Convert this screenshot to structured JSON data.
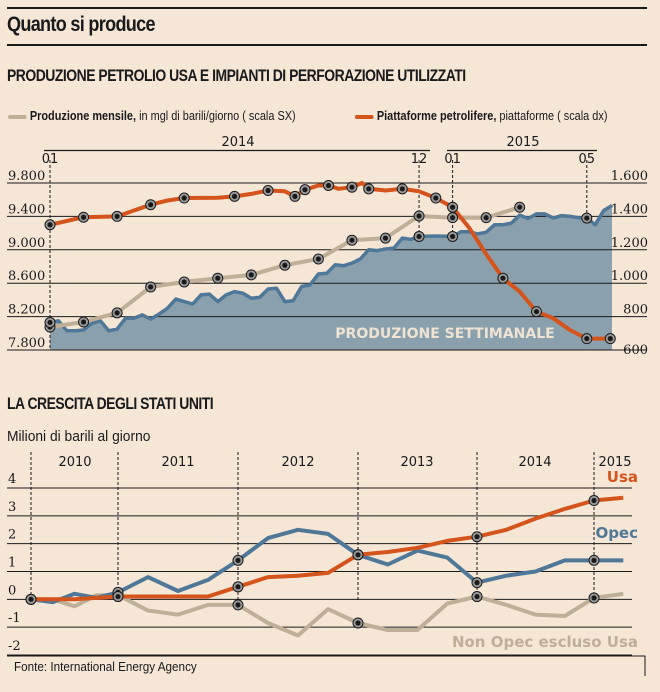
{
  "title": "Quanto si produce",
  "colors": {
    "background": "#f5e6d6",
    "rigs": "#d4541c",
    "monthly": "#bfae98",
    "weekly_line": "#4f7797",
    "weekly_fill": "#8aa0ad",
    "usa": "#d4541c",
    "opec": "#4f7797",
    "non_opec": "#bfae98"
  },
  "chart_data": [
    {
      "type": "line",
      "title": "PRODUZIONE PETROLIO USA E IMPIANTI DI PERFORAZIONE UTILIZZATI",
      "legend": [
        {
          "bold": "Produzione mensile,",
          "rest": " in mgl di barili/giorno ( scala SX)",
          "series": "monthly"
        },
        {
          "bold": "Piattaforme petrolifere,",
          "rest": " piattaforme ( scala dx)",
          "series": "rigs"
        }
      ],
      "year_labels": [
        "2014",
        "2015"
      ],
      "month_ticks": [
        {
          "label": "01",
          "month": 0
        },
        {
          "label": "12",
          "month": 11
        },
        {
          "label": "01",
          "month": 12
        },
        {
          "label": "05",
          "month": 16
        }
      ],
      "left_axis": {
        "ticks": [
          "9.800",
          "9.400",
          "9.000",
          "8.600",
          "8.200",
          "7.800"
        ],
        "range": [
          7800,
          9800
        ]
      },
      "right_axis": {
        "ticks": [
          "1.600",
          "1.400",
          "1.200",
          "1.000",
          "800",
          "600"
        ],
        "range": [
          600,
          1600
        ]
      },
      "area_label": "PRODUZIONE SETTIMANALE",
      "x_unit": "months since Jan 2014",
      "series": [
        {
          "name": "Piattaforme petrolifere",
          "key": "rigs",
          "axis": "right",
          "x": [
            0,
            1,
            2,
            3,
            3.5,
            4,
            5,
            5.5,
            6,
            6.5,
            7,
            7.3,
            7.6,
            8,
            8.3,
            8.6,
            9,
            9.3,
            9.5,
            10,
            10.5,
            11,
            11.5,
            12,
            12.5,
            13,
            13.5,
            14,
            14.5,
            15,
            15.5,
            16,
            16.7
          ],
          "values": [
            1350,
            1395,
            1400,
            1470,
            1495,
            1510,
            1512,
            1520,
            1535,
            1555,
            1550,
            1520,
            1560,
            1585,
            1585,
            1565,
            1575,
            1600,
            1565,
            1555,
            1565,
            1550,
            1510,
            1455,
            1330,
            1175,
            1030,
            950,
            830,
            790,
            720,
            668,
            668
          ],
          "markers": [
            0,
            1,
            2,
            3,
            5,
            7,
            9,
            11,
            12,
            14,
            16,
            18,
            20,
            22,
            23,
            26,
            28,
            31,
            32
          ]
        },
        {
          "name": "Produzione mensile",
          "key": "monthly",
          "axis": "left",
          "x": [
            0,
            1,
            2,
            3,
            4,
            5,
            6,
            7,
            8,
            9,
            10,
            11,
            12,
            13,
            14
          ],
          "values": [
            8075,
            8135,
            8245,
            8555,
            8615,
            8660,
            8700,
            8815,
            8890,
            9115,
            9140,
            9405,
            9385,
            9385,
            9510
          ]
        },
        {
          "name": "Produzione settimanale",
          "key": "weekly",
          "axis": "left",
          "x": [
            0,
            0.25,
            0.5,
            0.75,
            1,
            1.25,
            1.5,
            1.75,
            2,
            2.25,
            2.5,
            2.75,
            3,
            3.25,
            3.5,
            3.75,
            4,
            4.25,
            4.5,
            4.75,
            5,
            5.25,
            5.5,
            5.75,
            6,
            6.25,
            6.5,
            6.75,
            7,
            7.25,
            7.5,
            7.75,
            8,
            8.25,
            8.5,
            8.75,
            9,
            9.25,
            9.5,
            9.75,
            10,
            10.25,
            10.5,
            10.75,
            11,
            11.5,
            12,
            12.25,
            12.5,
            12.75,
            13,
            13.25,
            13.5,
            13.75,
            14,
            14.25,
            14.5,
            14.75,
            15,
            15.25,
            15.5,
            15.75,
            16,
            16.25,
            16.5,
            16.75
          ],
          "values": [
            8130,
            8150,
            8030,
            8030,
            8040,
            8120,
            8150,
            8030,
            8050,
            8180,
            8180,
            8220,
            8170,
            8230,
            8300,
            8410,
            8380,
            8350,
            8460,
            8470,
            8380,
            8460,
            8500,
            8480,
            8420,
            8430,
            8530,
            8540,
            8380,
            8390,
            8560,
            8580,
            8710,
            8720,
            8820,
            8810,
            8840,
            8890,
            9000,
            8990,
            9010,
            9020,
            9140,
            9125,
            9160,
            9165,
            9160,
            9215,
            9215,
            9190,
            9210,
            9300,
            9300,
            9320,
            9415,
            9375,
            9430,
            9430,
            9380,
            9410,
            9400,
            9385,
            9380,
            9300,
            9470,
            9530
          ]
        }
      ]
    },
    {
      "type": "line",
      "title": "LA CRESCITA DEGLI STATI UNITI",
      "ylabel": "Milioni di barili al giorno",
      "ylim": [
        -2,
        4
      ],
      "y_ticks": [
        "4",
        "3",
        "2",
        "1",
        "0",
        "-1",
        "-2"
      ],
      "x_unit": "years",
      "year_labels": [
        "2010",
        "2011",
        "2012",
        "2013",
        "2014",
        "2015"
      ],
      "year_starts": [
        2010,
        2011,
        2012,
        2013,
        2014,
        2015
      ],
      "series": [
        {
          "name": "Usa",
          "key": "usa",
          "label_color": "#d4541c",
          "x": [
            2010,
            2010.25,
            2010.5,
            2010.75,
            2011,
            2011.25,
            2011.5,
            2011.75,
            2012,
            2012.25,
            2012.5,
            2012.75,
            2013,
            2013.25,
            2013.5,
            2013.75,
            2014,
            2014.25,
            2014.5,
            2014.75,
            2015,
            2015.25
          ],
          "values": [
            0,
            0,
            0,
            0.05,
            0.1,
            0.1,
            0.1,
            0.1,
            0.45,
            0.8,
            0.85,
            0.95,
            1.6,
            1.7,
            1.85,
            2.1,
            2.25,
            2.5,
            2.9,
            3.25,
            3.55,
            3.65
          ],
          "markers": [
            0,
            4,
            8,
            12,
            16,
            20
          ]
        },
        {
          "name": "Opec",
          "key": "opec",
          "label_color": "#4f7797",
          "x": [
            2010,
            2010.25,
            2010.5,
            2010.75,
            2011,
            2011.25,
            2011.5,
            2011.75,
            2012,
            2012.25,
            2012.5,
            2012.75,
            2013,
            2013.25,
            2013.5,
            2013.75,
            2014,
            2014.25,
            2014.5,
            2014.75,
            2015,
            2015.25
          ],
          "values": [
            0,
            -0.1,
            0.2,
            0.05,
            0.25,
            0.8,
            0.3,
            0.7,
            1.4,
            2.2,
            2.5,
            2.35,
            1.6,
            1.25,
            1.75,
            1.5,
            0.6,
            0.85,
            1.0,
            1.4,
            1.4,
            1.4
          ],
          "markers": [
            0,
            4,
            8,
            12,
            16,
            20
          ]
        },
        {
          "name": "Non Opec escluso Usa",
          "key": "non_opec",
          "label_color": "#bfae98",
          "x": [
            2010,
            2010.25,
            2010.5,
            2010.75,
            2011,
            2011.25,
            2011.5,
            2011.75,
            2012,
            2012.25,
            2012.5,
            2012.75,
            2013,
            2013.25,
            2013.5,
            2013.75,
            2014,
            2014.25,
            2014.5,
            2014.75,
            2015,
            2015.25
          ],
          "values": [
            0,
            0,
            -0.25,
            0.15,
            0.15,
            -0.4,
            -0.55,
            -0.2,
            -0.2,
            -0.85,
            -1.3,
            -0.35,
            -0.85,
            -1.1,
            -1.1,
            -0.15,
            0.1,
            -0.2,
            -0.55,
            -0.6,
            0.05,
            0.2
          ],
          "markers": [
            0,
            4,
            8,
            12,
            16,
            20
          ]
        }
      ]
    }
  ],
  "source": "Fonte: International Energy Agency"
}
